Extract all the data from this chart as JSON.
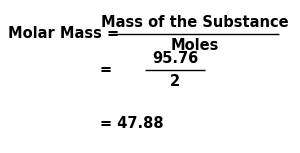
{
  "bg_color": "#ffffff",
  "text_color": "#000000",
  "line1_left": "Molar Mass = ",
  "line1_numerator": "Mass of the Substance",
  "line1_denominator": "Moles",
  "line2_eq": "= ",
  "line2_numerator": "95.76",
  "line2_denominator": "2",
  "line3": "= 47.88",
  "font_size": 10.5,
  "fig_width": 3.0,
  "fig_height": 1.53,
  "dpi": 100
}
